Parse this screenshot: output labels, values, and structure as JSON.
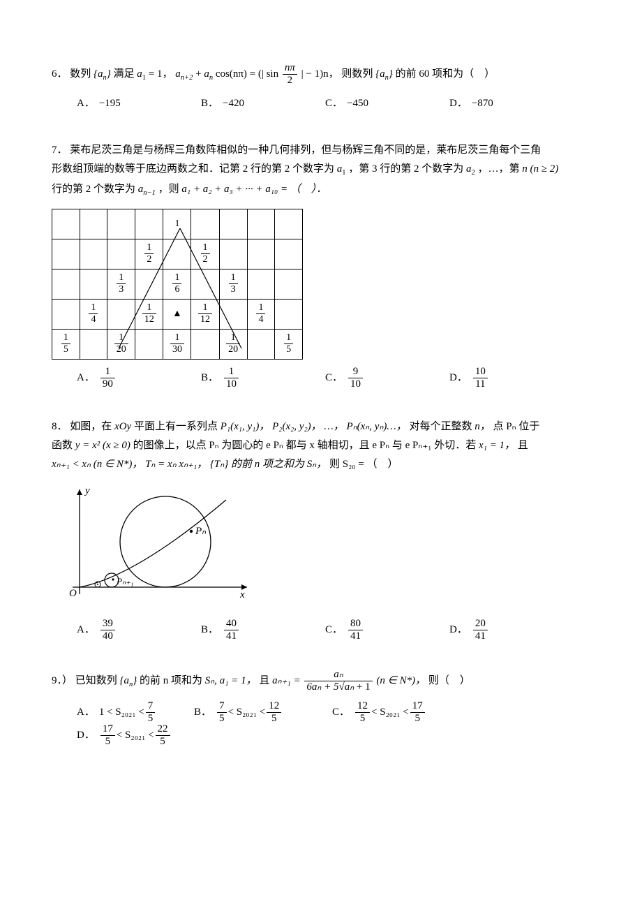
{
  "q6": {
    "number": "6．",
    "stem_before": "数列",
    "seq": "{aₙ}",
    "satisfy": "满足 ",
    "a1eq": "a",
    "a1sub": "1",
    "a1val": " = 1，",
    "rec_lhs_a": "a",
    "rec_lhs_sub1": "n+2",
    "rec_plus": " + ",
    "rec_lhs_sub2": "n",
    "rec_cos": " cos(nπ) = (| sin ",
    "frac_num": "nπ",
    "frac_den": "2",
    "rec_after": " | − 1)n，",
    "then": "则数列",
    "of60": "的前 60 项和为（　）",
    "options": {
      "A": "−195",
      "B": "−420",
      "C": "−450",
      "D": "−870"
    }
  },
  "q7": {
    "number": "7．",
    "p1": "莱布尼茨三角是与杨辉三角数阵相似的一种几何排列，但与杨辉三角不同的是，莱布尼茨三角每个三角",
    "p2a": "形数组顶端的数等于底边两数之和．记第 2 行的第 2 个数字为 ",
    "p2b": "，第 3 行的第 2 个数字为 ",
    "p2c": "，…，第 ",
    "p2d": "n (n ≥ 2)",
    "p3a": "行的第 2 个数字为 ",
    "p3b": "，则 ",
    "sum_expr": "a₁ + a₂ + a₃ + ··· + a₁₀ = （　）．",
    "table": {
      "rows": [
        [
          "",
          "",
          "",
          "",
          "1",
          "",
          "",
          "",
          ""
        ],
        [
          "",
          "",
          "",
          "1/2",
          "",
          "1/2",
          "",
          "",
          ""
        ],
        [
          "",
          "",
          "1/3",
          "",
          "1/6",
          "",
          "1/3",
          "",
          ""
        ],
        [
          "",
          "1/4",
          "",
          "1/12",
          "▲",
          "1/12",
          "",
          "1/4",
          ""
        ],
        [
          "1/5",
          "",
          "1/20",
          "",
          "1/30",
          "",
          "1/20",
          "",
          "1/5"
        ]
      ]
    },
    "options": {
      "A": {
        "num": "1",
        "den": "90"
      },
      "B": {
        "num": "1",
        "den": "10"
      },
      "C": {
        "num": "9",
        "den": "10"
      },
      "D": {
        "num": "10",
        "den": "11"
      }
    }
  },
  "q8": {
    "number": "8．",
    "p1a": "如图，在 ",
    "p1b": " 平面上有一系列点 ",
    "p1_xoy": "xOy",
    "p1_pts": "P₁(x₁, y₁)， P₂(x₂, y₂)， …， Pₙ(xₙ, yₙ)…，",
    "p1c": "对每个正整数 ",
    "p1d": "n，",
    "p1e": "点 Pₙ 位于",
    "p2a": "函数 ",
    "p2_func": "y = x² (x ≥ 0)",
    "p2b": " 的图像上，以点 Pₙ 为圆心的 e Pₙ 都与 x 轴相切，且 e Pₙ 与 e Pₙ₊₁ 外切．若 ",
    "p2c": "x₁ = 1，",
    "p2d": "且",
    "p3a": "xₙ₊₁ < xₙ (n ∈ N*)，",
    "p3_Tn": "Tₙ = xₙ xₙ₊₁，",
    "p3b": "{Tₙ} 的前 n 项之和为 Sₙ，",
    "p3c": "则 S₂₀ = （　）",
    "options": {
      "A": {
        "num": "39",
        "den": "40"
      },
      "B": {
        "num": "40",
        "den": "41"
      },
      "C": {
        "num": "80",
        "den": "41"
      },
      "D": {
        "num": "20",
        "den": "41"
      }
    },
    "fig": {
      "y_label": "y",
      "x_label": "x",
      "O_label": "O",
      "Pn_label": "Pₙ",
      "Pn1_label": "Pₙ₊₁"
    }
  },
  "q9": {
    "number": "9．）",
    "p1a": "已知数列",
    "seq": "{aₙ}",
    "p1b": "的前 n 项和为 ",
    "Sn": "Sₙ, a₁ = 1，",
    "p1c": "且 ",
    "rec_lhs": "aₙ₊₁ = ",
    "rec_num": "aₙ",
    "rec_den_a": "6aₙ + 5",
    "rec_den_sqrt": "aₙ",
    "rec_den_b": " + 1",
    "cond": " (n ∈ N*)，",
    "then": "则（　）",
    "options": {
      "A": {
        "l": "1 < S₂₀₂₁ < ",
        "num": "7",
        "den": "5"
      },
      "B": {
        "lnum": "7",
        "lden": "5",
        "mid": " < S₂₀₂₁ < ",
        "rnum": "12",
        "rden": "5"
      },
      "C": {
        "lnum": "12",
        "lden": "5",
        "mid": " < S₂₀₂₁ < ",
        "rnum": "17",
        "rden": "5"
      },
      "D": {
        "lnum": "17",
        "lden": "5",
        "mid": " < S₂₀₂₁ < ",
        "rnum": "22",
        "rden": "5"
      }
    }
  }
}
